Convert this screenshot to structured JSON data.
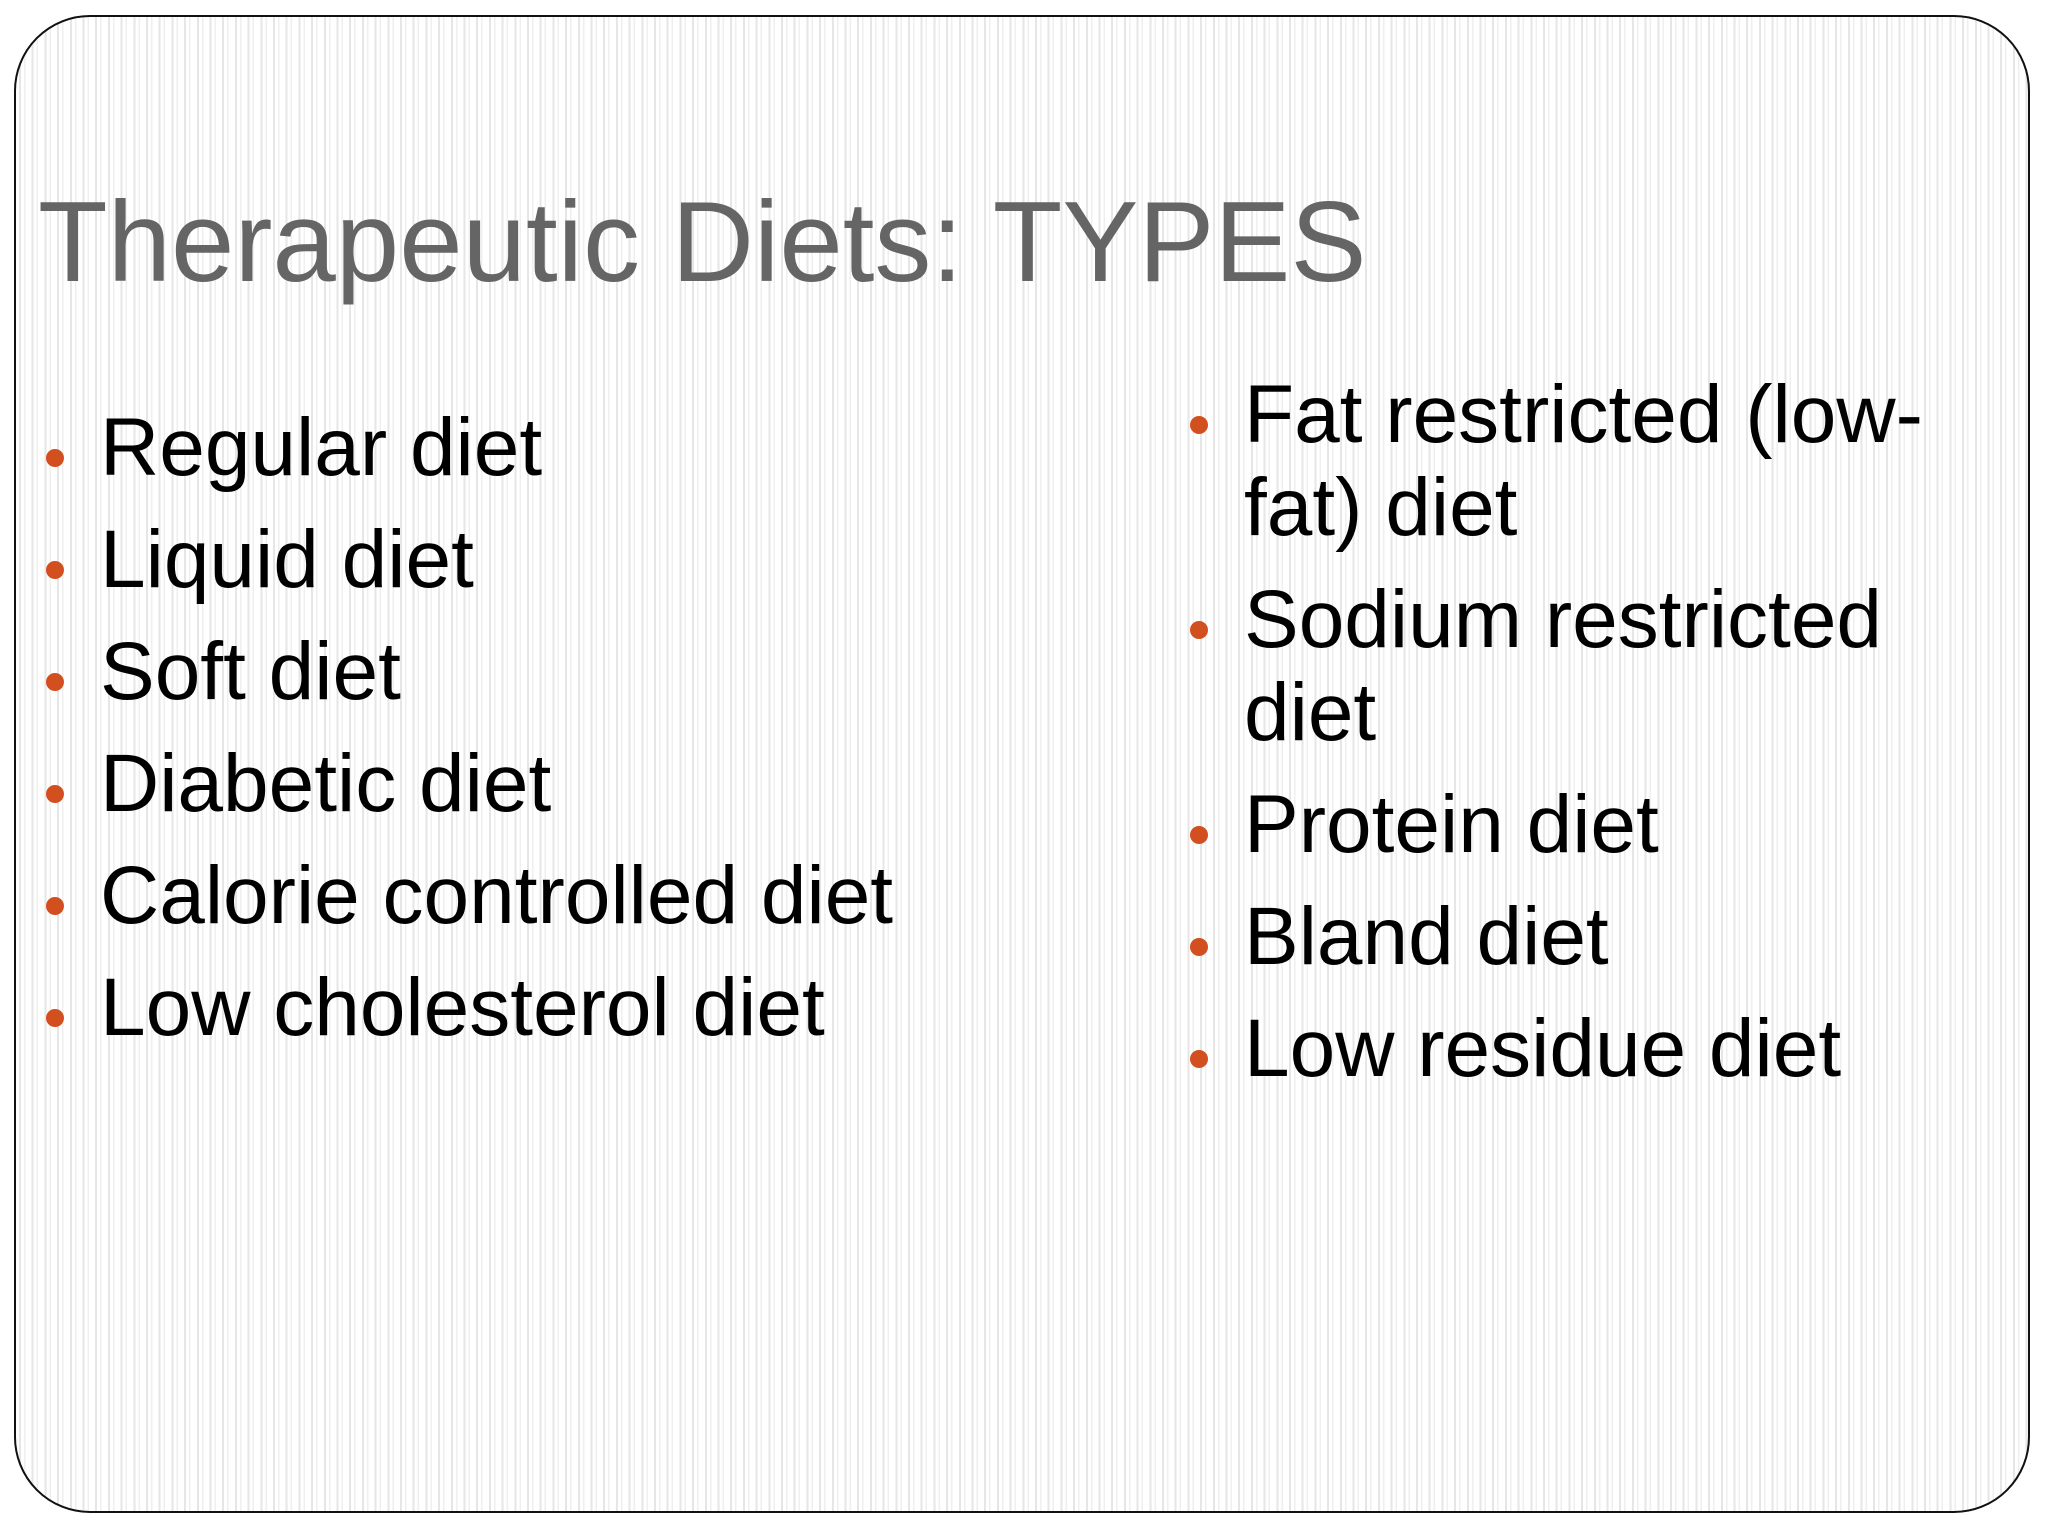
{
  "slide": {
    "title": "Therapeutic Diets: TYPES",
    "bullet_color": "#d24f1f",
    "left_items": [
      "Regular diet",
      "Liquid diet",
      "Soft diet",
      "Diabetic diet",
      "Calorie controlled diet",
      "Low cholesterol diet"
    ],
    "right_items": [
      "Fat restricted (low-fat) diet",
      "Sodium restricted diet",
      "Protein diet",
      "Bland diet",
      "Low residue diet"
    ]
  }
}
